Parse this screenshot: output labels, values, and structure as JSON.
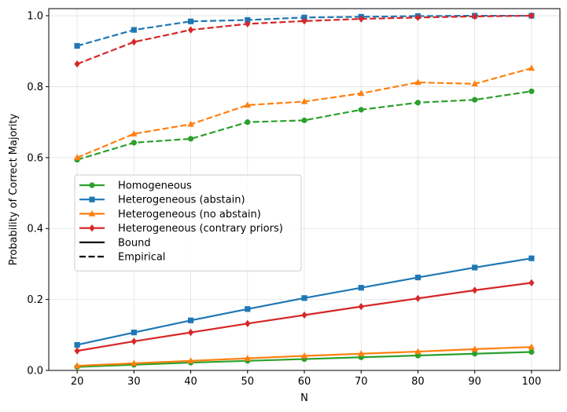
{
  "chart_data": {
    "type": "line",
    "title": "",
    "xlabel": "N",
    "ylabel": "Probability of Correct Majority",
    "x": [
      20,
      30,
      40,
      50,
      60,
      70,
      80,
      90,
      100
    ],
    "xlim": [
      15,
      105
    ],
    "ylim": [
      0,
      1.02
    ],
    "xticks": [
      "20",
      "30",
      "40",
      "50",
      "60",
      "70",
      "80",
      "90",
      "100"
    ],
    "yticks": [
      "0.0",
      "0.2",
      "0.4",
      "0.6",
      "0.8",
      "1.0"
    ],
    "grid": true,
    "legend_position": "center-left",
    "series": [
      {
        "name": "Homogeneous",
        "kind": "Bound",
        "color": "#2ca02c",
        "marker": "circle",
        "values": [
          0.01,
          0.016,
          0.022,
          0.027,
          0.032,
          0.037,
          0.042,
          0.047,
          0.052
        ]
      },
      {
        "name": "Homogeneous",
        "kind": "Empirical",
        "color": "#2ca02c",
        "marker": "circle",
        "values": [
          0.594,
          0.642,
          0.653,
          0.7,
          0.705,
          0.735,
          0.755,
          0.763,
          0.787
        ]
      },
      {
        "name": "Heterogeneous (abstain)",
        "kind": "Bound",
        "color": "#1f77b4",
        "marker": "square",
        "values": [
          0.072,
          0.107,
          0.141,
          0.173,
          0.204,
          0.233,
          0.262,
          0.29,
          0.316
        ]
      },
      {
        "name": "Heterogeneous (abstain)",
        "kind": "Empirical",
        "color": "#1f77b4",
        "marker": "square",
        "values": [
          0.915,
          0.96,
          0.984,
          0.988,
          0.995,
          0.997,
          0.999,
          1.0,
          1.0
        ]
      },
      {
        "name": "Heterogeneous (no abstain)",
        "kind": "Bound",
        "color": "#ff7f0e",
        "marker": "triangle",
        "values": [
          0.013,
          0.02,
          0.027,
          0.034,
          0.041,
          0.047,
          0.053,
          0.06,
          0.066
        ]
      },
      {
        "name": "Heterogeneous (no abstain)",
        "kind": "Empirical",
        "color": "#ff7f0e",
        "marker": "triangle",
        "values": [
          0.6,
          0.667,
          0.694,
          0.748,
          0.758,
          0.781,
          0.812,
          0.808,
          0.852
        ]
      },
      {
        "name": "Heterogeneous (contrary priors)",
        "kind": "Bound",
        "color": "#d62728",
        "marker": "diamond",
        "values": [
          0.055,
          0.082,
          0.107,
          0.132,
          0.156,
          0.18,
          0.203,
          0.226,
          0.247
        ]
      },
      {
        "name": "Heterogeneous (contrary priors)",
        "kind": "Empirical",
        "color": "#d62728",
        "marker": "diamond",
        "values": [
          0.864,
          0.926,
          0.96,
          0.977,
          0.985,
          0.991,
          0.995,
          0.998,
          1.0
        ]
      }
    ],
    "legend": [
      {
        "label": "Homogeneous",
        "color": "#2ca02c",
        "marker": "circle",
        "style": "solid"
      },
      {
        "label": "Heterogeneous (abstain)",
        "color": "#1f77b4",
        "marker": "square",
        "style": "solid"
      },
      {
        "label": "Heterogeneous (no abstain)",
        "color": "#ff7f0e",
        "marker": "triangle",
        "style": "solid"
      },
      {
        "label": "Heterogeneous (contrary priors)",
        "color": "#d62728",
        "marker": "diamond",
        "style": "solid"
      },
      {
        "label": "Bound",
        "color": "#000000",
        "marker": "none",
        "style": "solid"
      },
      {
        "label": "Empirical",
        "color": "#000000",
        "marker": "none",
        "style": "dashed"
      }
    ]
  }
}
